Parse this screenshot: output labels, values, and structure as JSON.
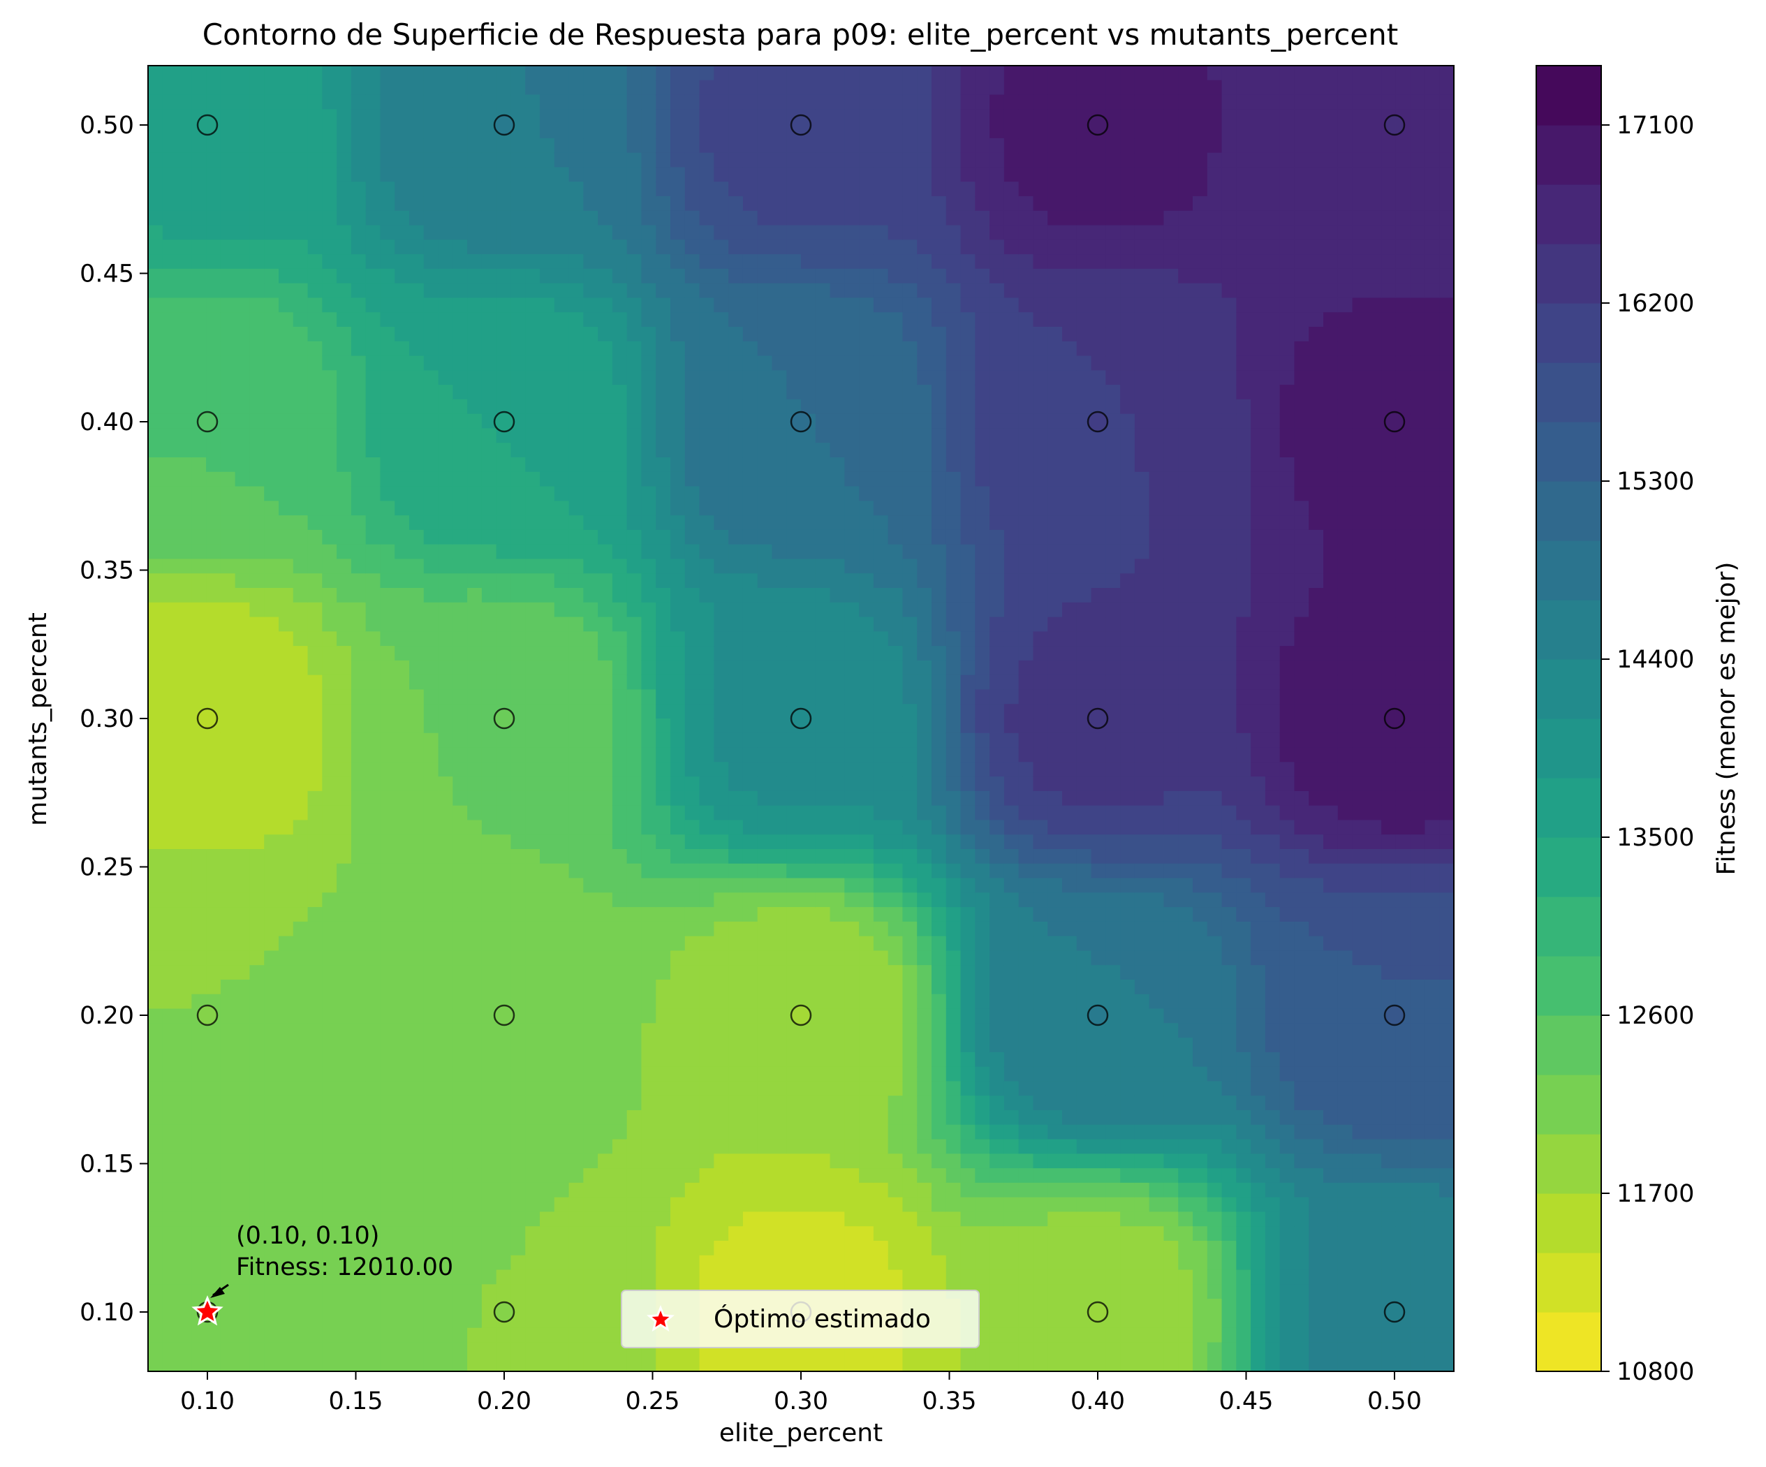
{
  "chart_data": {
    "type": "contour",
    "title": "Contorno de Superficie de Respuesta para p09: elite_percent vs mutants_percent",
    "xlabel": "elite_percent",
    "ylabel": "mutants_percent",
    "xlim": [
      0.08,
      0.52
    ],
    "ylim": [
      0.08,
      0.52
    ],
    "x_ticks": [
      0.1,
      0.15,
      0.2,
      0.25,
      0.3,
      0.35,
      0.4,
      0.45,
      0.5
    ],
    "y_ticks": [
      0.1,
      0.15,
      0.2,
      0.25,
      0.3,
      0.35,
      0.4,
      0.45,
      0.5
    ],
    "colormap": "viridis_r",
    "colorbar": {
      "label": "Fitness (menor es mejor)",
      "range": [
        10800,
        17400
      ],
      "ticks": [
        10800,
        11700,
        12600,
        13500,
        14400,
        15300,
        16200,
        17100
      ],
      "levels": 22
    },
    "sample_points": [
      {
        "x": 0.1,
        "y": 0.5,
        "fitness": 13600
      },
      {
        "x": 0.2,
        "y": 0.5,
        "fitness": 14700
      },
      {
        "x": 0.3,
        "y": 0.5,
        "fitness": 16000
      },
      {
        "x": 0.4,
        "y": 0.5,
        "fitness": 16900
      },
      {
        "x": 0.5,
        "y": 0.5,
        "fitness": 16500
      },
      {
        "x": 0.1,
        "y": 0.4,
        "fitness": 12600
      },
      {
        "x": 0.2,
        "y": 0.4,
        "fitness": 13500
      },
      {
        "x": 0.3,
        "y": 0.4,
        "fitness": 15000
      },
      {
        "x": 0.4,
        "y": 0.4,
        "fitness": 16200
      },
      {
        "x": 0.5,
        "y": 0.4,
        "fitness": 16900
      },
      {
        "x": 0.1,
        "y": 0.3,
        "fitness": 11500
      },
      {
        "x": 0.2,
        "y": 0.3,
        "fitness": 12300
      },
      {
        "x": 0.3,
        "y": 0.3,
        "fitness": 14200
      },
      {
        "x": 0.4,
        "y": 0.3,
        "fitness": 16300
      },
      {
        "x": 0.5,
        "y": 0.3,
        "fitness": 17000
      },
      {
        "x": 0.1,
        "y": 0.2,
        "fitness": 12000
      },
      {
        "x": 0.2,
        "y": 0.2,
        "fitness": 12100
      },
      {
        "x": 0.3,
        "y": 0.2,
        "fitness": 11700
      },
      {
        "x": 0.4,
        "y": 0.2,
        "fitness": 14700
      },
      {
        "x": 0.5,
        "y": 0.2,
        "fitness": 15600
      },
      {
        "x": 0.1,
        "y": 0.1,
        "fitness": 12010
      },
      {
        "x": 0.2,
        "y": 0.1,
        "fitness": 12000
      },
      {
        "x": 0.3,
        "y": 0.1,
        "fitness": 11300
      },
      {
        "x": 0.4,
        "y": 0.1,
        "fitness": 11800
      },
      {
        "x": 0.5,
        "y": 0.1,
        "fitness": 14500
      }
    ],
    "optimum": {
      "x": 0.1,
      "y": 0.1,
      "fitness": 12010.0,
      "annotation_line1": "(0.10, 0.10)",
      "annotation_line2": "Fitness: 12010.00",
      "marker_color": "#ff0000"
    },
    "legend": {
      "placement": "lower-center",
      "entries": [
        "Óptimo estimado"
      ]
    }
  }
}
